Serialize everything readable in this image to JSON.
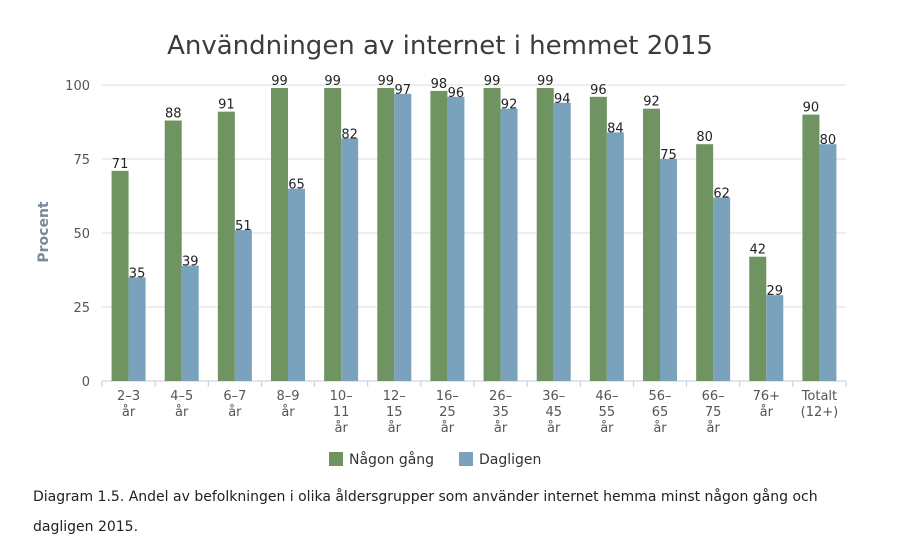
{
  "chart_data": {
    "type": "bar",
    "title": "Användningen av internet i hemmet 2015",
    "xlabel": "",
    "ylabel": "Procent",
    "ylim": [
      0,
      100
    ],
    "yticks": [
      0,
      25,
      50,
      75,
      100
    ],
    "grid": true,
    "legend_position": "bottom",
    "categories": [
      [
        "2–3",
        "år"
      ],
      [
        "4–5",
        "år"
      ],
      [
        "6–7",
        "år"
      ],
      [
        "8–9",
        "år"
      ],
      [
        "10–",
        "11",
        "år"
      ],
      [
        "12–",
        "15",
        "år"
      ],
      [
        "16–",
        "25",
        "år"
      ],
      [
        "26–",
        "35",
        "år"
      ],
      [
        "36–",
        "45",
        "år"
      ],
      [
        "46–",
        "55",
        "år"
      ],
      [
        "56–",
        "65",
        "år"
      ],
      [
        "66–",
        "75",
        "år"
      ],
      [
        "76+",
        "år"
      ],
      [
        "Totalt",
        "(12+)"
      ]
    ],
    "series": [
      {
        "name": "Någon gång",
        "color": "#6f9462",
        "values": [
          71,
          88,
          91,
          99,
          99,
          99,
          98,
          99,
          99,
          96,
          92,
          80,
          42,
          90
        ]
      },
      {
        "name": "Dagligen",
        "color": "#7ba2bd",
        "values": [
          35,
          39,
          51,
          65,
          82,
          97,
          96,
          92,
          94,
          84,
          75,
          62,
          29,
          80
        ]
      }
    ]
  },
  "caption": "Diagram 1.5. Andel av befolkningen i olika åldersgrupper som använder internet hemma minst någon gång och dagligen 2015.",
  "colors": {
    "grid": "#dddddd",
    "axis": "#c0ccd8"
  }
}
